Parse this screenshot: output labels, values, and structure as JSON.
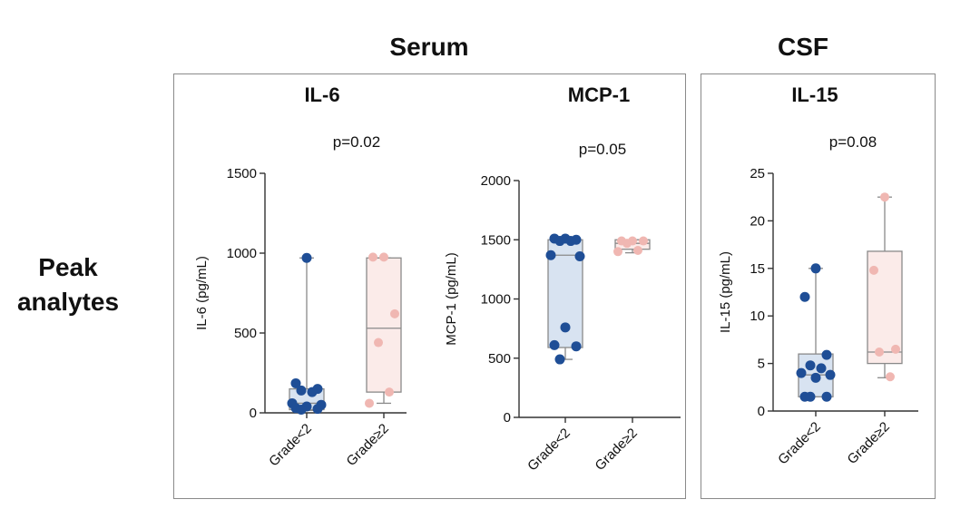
{
  "row_label": {
    "line1": "Peak",
    "line2": "analytes"
  },
  "groups": [
    {
      "title": "Serum"
    },
    {
      "title": "CSF"
    }
  ],
  "colors": {
    "low_point": "#1f4e96",
    "low_fill": "#d8e3f1",
    "high_point": "#f0b7b2",
    "high_fill": "#fbebe9",
    "axis": "#333333",
    "whisker": "#8a8a8a"
  },
  "chart_data": [
    {
      "type": "box",
      "group": "Serum",
      "title": "IL-6",
      "pvalue": "p=0.02",
      "ylabel": "IL-6 (pg/mL)",
      "ylim": [
        0,
        1500
      ],
      "yticks": [
        0,
        500,
        1000,
        1500
      ],
      "categories": [
        "Grade<2",
        "Grade≥2"
      ],
      "series": [
        {
          "name": "Grade<2",
          "box": {
            "min": 15,
            "q1": 20,
            "median": 60,
            "q3": 150,
            "max": 970
          },
          "points": [
            970,
            185,
            150,
            140,
            130,
            60,
            50,
            40,
            30,
            25,
            20
          ]
        },
        {
          "name": "Grade≥2",
          "box": {
            "min": 60,
            "q1": 130,
            "median": 530,
            "q3": 970,
            "max": 970
          },
          "points": [
            975,
            975,
            620,
            440,
            130,
            60
          ]
        }
      ]
    },
    {
      "type": "box",
      "group": "Serum",
      "title": "MCP-1",
      "pvalue": "p=0.05",
      "ylabel": "MCP-1 (pg/mL)",
      "ylim": [
        0,
        2000
      ],
      "yticks": [
        0,
        500,
        1000,
        1500,
        2000
      ],
      "categories": [
        "Grade<2",
        "Grade≥2"
      ],
      "series": [
        {
          "name": "Grade<2",
          "box": {
            "min": 490,
            "q1": 590,
            "median": 1370,
            "q3": 1500,
            "max": 1500
          },
          "points": [
            1510,
            1510,
            1500,
            1490,
            1490,
            1370,
            1360,
            760,
            610,
            600,
            490
          ]
        },
        {
          "name": "Grade≥2",
          "box": {
            "min": 1390,
            "q1": 1420,
            "median": 1470,
            "q3": 1500,
            "max": 1500
          },
          "points": [
            1490,
            1490,
            1490,
            1470,
            1410,
            1400
          ]
        }
      ]
    },
    {
      "type": "box",
      "group": "CSF",
      "title": "IL-15",
      "pvalue": "p=0.08",
      "ylabel": "IL-15 (pg/mL)",
      "ylim": [
        0,
        25
      ],
      "yticks": [
        0,
        5,
        10,
        15,
        20,
        25
      ],
      "categories": [
        "Grade<2",
        "Grade≥2"
      ],
      "series": [
        {
          "name": "Grade<2",
          "box": {
            "min": 1.5,
            "q1": 1.5,
            "median": 3.8,
            "q3": 6.0,
            "max": 15.0
          },
          "points": [
            15.0,
            12.0,
            5.9,
            4.8,
            4.5,
            4.0,
            3.8,
            3.5,
            1.5,
            1.5,
            1.5
          ]
        },
        {
          "name": "Grade≥2",
          "box": {
            "min": 3.5,
            "q1": 5.0,
            "median": 6.2,
            "q3": 16.8,
            "max": 22.5
          },
          "points": [
            22.5,
            14.8,
            6.5,
            6.2,
            3.6
          ]
        }
      ]
    }
  ]
}
